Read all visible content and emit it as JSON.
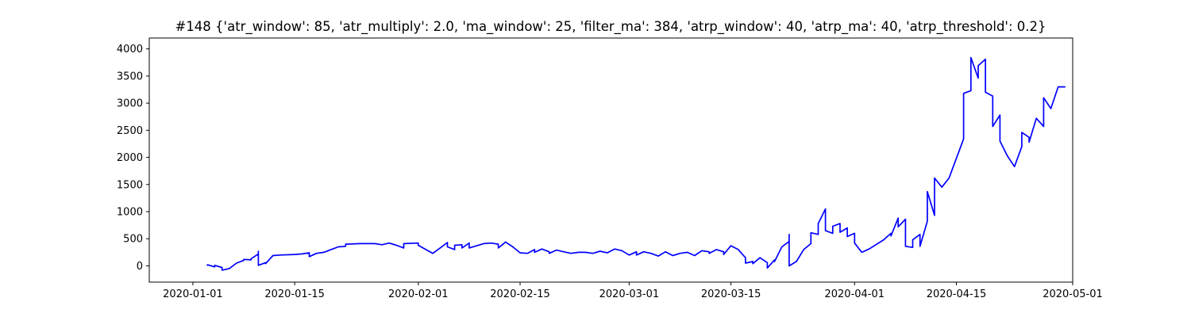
{
  "chart_data": {
    "type": "line",
    "title": "#148 {'atr_window': 85, 'atr_multiply': 2.0, 'ma_window': 25, 'filter_ma': 384, 'atrp_window': 40, 'atrp_ma': 40, 'atrp_threshold': 0.2}",
    "xlabel": "",
    "ylabel": "",
    "xlim": [
      "2019-12-26",
      "2020-05-01"
    ],
    "ylim": [
      -300,
      4200
    ],
    "grid": false,
    "legend": "none",
    "x_ticks": [
      "2020-01-01",
      "2020-01-15",
      "2020-02-01",
      "2020-02-15",
      "2020-03-01",
      "2020-03-15",
      "2020-04-01",
      "2020-04-15",
      "2020-05-01"
    ],
    "y_ticks": [
      0,
      500,
      1000,
      1500,
      2000,
      2500,
      3000,
      3500,
      4000
    ],
    "series": [
      {
        "color": "#0000ff",
        "points": [
          [
            "2020-01-03",
            0
          ],
          [
            "2020-01-03",
            20
          ],
          [
            "2020-01-04",
            -20
          ],
          [
            "2020-01-04",
            10
          ],
          [
            "2020-01-05",
            -30
          ],
          [
            "2020-01-05",
            -80
          ],
          [
            "2020-01-06",
            -50
          ],
          [
            "2020-01-07",
            50
          ],
          [
            "2020-01-08",
            100
          ],
          [
            "2020-01-08",
            120
          ],
          [
            "2020-01-09",
            110
          ],
          [
            "2020-01-09",
            130
          ],
          [
            "2020-01-10",
            220
          ],
          [
            "2020-01-10",
            270
          ],
          [
            "2020-01-10",
            10
          ],
          [
            "2020-01-11",
            60
          ],
          [
            "2020-01-11",
            40
          ],
          [
            "2020-01-12",
            190
          ],
          [
            "2020-01-13",
            200
          ],
          [
            "2020-01-15",
            210
          ],
          [
            "2020-01-16",
            220
          ],
          [
            "2020-01-17",
            240
          ],
          [
            "2020-01-17",
            220
          ],
          [
            "2020-01-17",
            170
          ],
          [
            "2020-01-18",
            230
          ],
          [
            "2020-01-19",
            250
          ],
          [
            "2020-01-20",
            300
          ],
          [
            "2020-01-21",
            350
          ],
          [
            "2020-01-22",
            360
          ],
          [
            "2020-01-22",
            400
          ],
          [
            "2020-01-24",
            410
          ],
          [
            "2020-01-26",
            410
          ],
          [
            "2020-01-27",
            390
          ],
          [
            "2020-01-28",
            420
          ],
          [
            "2020-01-29",
            380
          ],
          [
            "2020-01-30",
            330
          ],
          [
            "2020-01-30",
            410
          ],
          [
            "2020-02-01",
            420
          ],
          [
            "2020-02-01",
            380
          ],
          [
            "2020-02-03",
            230
          ],
          [
            "2020-02-04",
            330
          ],
          [
            "2020-02-05",
            430
          ],
          [
            "2020-02-05",
            350
          ],
          [
            "2020-02-06",
            300
          ],
          [
            "2020-02-06",
            380
          ],
          [
            "2020-02-07",
            390
          ],
          [
            "2020-02-07",
            330
          ],
          [
            "2020-02-08",
            420
          ],
          [
            "2020-02-08",
            330
          ],
          [
            "2020-02-10",
            410
          ],
          [
            "2020-02-11",
            420
          ],
          [
            "2020-02-12",
            400
          ],
          [
            "2020-02-12",
            330
          ],
          [
            "2020-02-13",
            440
          ],
          [
            "2020-02-14",
            350
          ],
          [
            "2020-02-15",
            240
          ],
          [
            "2020-02-16",
            230
          ],
          [
            "2020-02-17",
            300
          ],
          [
            "2020-02-17",
            250
          ],
          [
            "2020-02-18",
            310
          ],
          [
            "2020-02-19",
            260
          ],
          [
            "2020-02-19",
            230
          ],
          [
            "2020-02-20",
            290
          ],
          [
            "2020-02-21",
            260
          ],
          [
            "2020-02-22",
            230
          ],
          [
            "2020-02-23",
            250
          ],
          [
            "2020-02-24",
            250
          ],
          [
            "2020-02-25",
            230
          ],
          [
            "2020-02-26",
            270
          ],
          [
            "2020-02-27",
            240
          ],
          [
            "2020-02-28",
            310
          ],
          [
            "2020-02-29",
            280
          ],
          [
            "2020-03-01",
            200
          ],
          [
            "2020-03-02",
            260
          ],
          [
            "2020-03-02",
            200
          ],
          [
            "2020-03-03",
            260
          ],
          [
            "2020-03-04",
            230
          ],
          [
            "2020-03-05",
            180
          ],
          [
            "2020-03-06",
            260
          ],
          [
            "2020-03-07",
            190
          ],
          [
            "2020-03-08",
            230
          ],
          [
            "2020-03-09",
            250
          ],
          [
            "2020-03-10",
            190
          ],
          [
            "2020-03-11",
            280
          ],
          [
            "2020-03-12",
            260
          ],
          [
            "2020-03-12",
            230
          ],
          [
            "2020-03-13",
            300
          ],
          [
            "2020-03-14",
            260
          ],
          [
            "2020-03-14",
            210
          ],
          [
            "2020-03-15",
            370
          ],
          [
            "2020-03-16",
            300
          ],
          [
            "2020-03-17",
            150
          ],
          [
            "2020-03-17",
            50
          ],
          [
            "2020-03-18",
            80
          ],
          [
            "2020-03-18",
            40
          ],
          [
            "2020-03-19",
            150
          ],
          [
            "2020-03-20",
            60
          ],
          [
            "2020-03-20",
            -40
          ],
          [
            "2020-03-21",
            110
          ],
          [
            "2020-03-21",
            80
          ],
          [
            "2020-03-22",
            350
          ],
          [
            "2020-03-23",
            450
          ],
          [
            "2020-03-23",
            580
          ],
          [
            "2020-03-23",
            0
          ],
          [
            "2020-03-24",
            80
          ],
          [
            "2020-03-25",
            300
          ],
          [
            "2020-03-26",
            410
          ],
          [
            "2020-03-26",
            610
          ],
          [
            "2020-03-27",
            580
          ],
          [
            "2020-03-27",
            780
          ],
          [
            "2020-03-28",
            1050
          ],
          [
            "2020-03-28",
            650
          ],
          [
            "2020-03-29",
            600
          ],
          [
            "2020-03-29",
            730
          ],
          [
            "2020-03-30",
            780
          ],
          [
            "2020-03-30",
            620
          ],
          [
            "2020-03-31",
            700
          ],
          [
            "2020-03-31",
            540
          ],
          [
            "2020-04-01",
            600
          ],
          [
            "2020-04-01",
            420
          ],
          [
            "2020-04-02",
            250
          ],
          [
            "2020-04-03",
            310
          ],
          [
            "2020-04-05",
            480
          ],
          [
            "2020-04-06",
            600
          ],
          [
            "2020-04-06",
            550
          ],
          [
            "2020-04-07",
            880
          ],
          [
            "2020-04-07",
            720
          ],
          [
            "2020-04-08",
            860
          ],
          [
            "2020-04-08",
            360
          ],
          [
            "2020-04-09",
            340
          ],
          [
            "2020-04-09",
            480
          ],
          [
            "2020-04-10",
            580
          ],
          [
            "2020-04-10",
            360
          ],
          [
            "2020-04-11",
            820
          ],
          [
            "2020-04-11",
            1370
          ],
          [
            "2020-04-12",
            930
          ],
          [
            "2020-04-12",
            1620
          ],
          [
            "2020-04-13",
            1450
          ],
          [
            "2020-04-14",
            1620
          ],
          [
            "2020-04-16",
            2340
          ],
          [
            "2020-04-16",
            3180
          ],
          [
            "2020-04-17",
            3230
          ],
          [
            "2020-04-17",
            3840
          ],
          [
            "2020-04-18",
            3460
          ],
          [
            "2020-04-18",
            3690
          ],
          [
            "2020-04-19",
            3810
          ],
          [
            "2020-04-19",
            3200
          ],
          [
            "2020-04-20",
            3130
          ],
          [
            "2020-04-20",
            2570
          ],
          [
            "2020-04-21",
            2780
          ],
          [
            "2020-04-21",
            2300
          ],
          [
            "2020-04-22",
            2030
          ],
          [
            "2020-04-23",
            1830
          ],
          [
            "2020-04-24",
            2200
          ],
          [
            "2020-04-24",
            2460
          ],
          [
            "2020-04-25",
            2370
          ],
          [
            "2020-04-25",
            2280
          ],
          [
            "2020-04-26",
            2720
          ],
          [
            "2020-04-27",
            2570
          ],
          [
            "2020-04-27",
            3100
          ],
          [
            "2020-04-28",
            2900
          ],
          [
            "2020-04-29",
            3300
          ],
          [
            "2020-04-30",
            3300
          ]
        ]
      }
    ]
  }
}
